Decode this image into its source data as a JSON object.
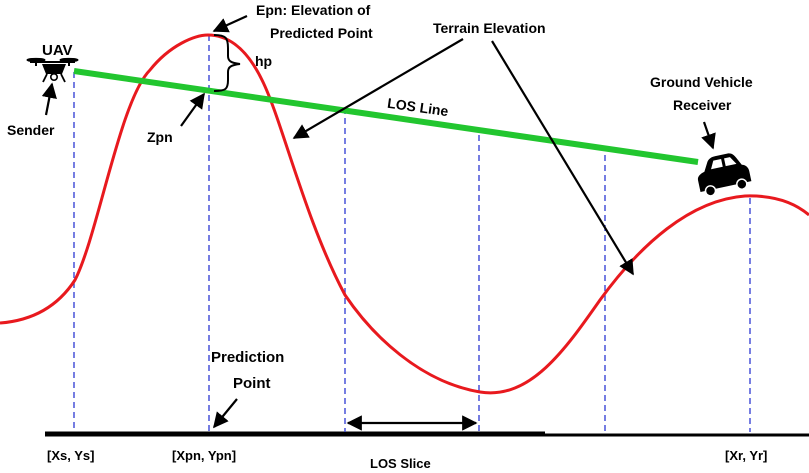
{
  "labels": {
    "uav": "UAV",
    "sender": "Sender",
    "epn_line1": "Epn: Elevation of",
    "epn_line2": "Predicted Point",
    "hp": "hp",
    "zpn": "Zpn",
    "terrain_elevation": "Terrain Elevation",
    "los_line": "LOS Line",
    "ground_vehicle_line1": "Ground Vehicle",
    "ground_vehicle_line2": "Receiver",
    "prediction_line1": "Prediction",
    "prediction_line2": "Point",
    "xs_ys": "[Xs, Ys]",
    "xpn_ypn": "[Xpn, Ypn]",
    "los_slice": "LOS Slice",
    "xr_yr": "[Xr, Yr]"
  },
  "colors": {
    "terrain": "#e8191e",
    "los_line": "#22c62f",
    "dashed_guides": "#3b46d6",
    "ground": "#000000",
    "text": "#000000"
  },
  "icons": {
    "sender": "drone-icon",
    "receiver": "car-icon"
  }
}
